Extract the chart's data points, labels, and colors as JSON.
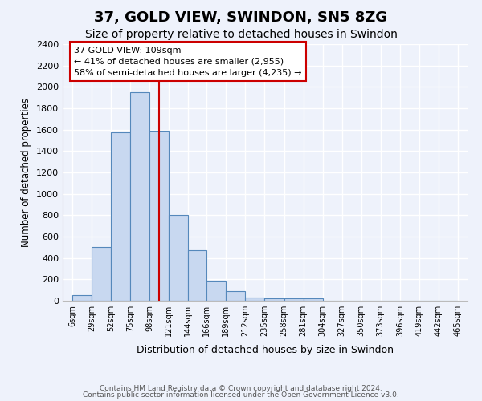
{
  "title": "37, GOLD VIEW, SWINDON, SN5 8ZG",
  "subtitle": "Size of property relative to detached houses in Swindon",
  "xlabel": "Distribution of detached houses by size in Swindon",
  "ylabel": "Number of detached properties",
  "bin_edges": [
    6,
    29,
    52,
    75,
    98,
    121,
    144,
    166,
    189,
    212,
    235,
    258,
    281,
    304,
    327,
    350,
    373,
    396,
    419,
    442,
    465
  ],
  "bin_edge_labels": [
    "6sqm",
    "29sqm",
    "52sqm",
    "75sqm",
    "98sqm",
    "121sqm",
    "144sqm",
    "166sqm",
    "189sqm",
    "212sqm",
    "235sqm",
    "258sqm",
    "281sqm",
    "304sqm",
    "327sqm",
    "350sqm",
    "373sqm",
    "396sqm",
    "419sqm",
    "442sqm",
    "465sqm"
  ],
  "bar_heights": [
    50,
    500,
    1575,
    1950,
    1590,
    800,
    475,
    185,
    90,
    30,
    25,
    25,
    25,
    0,
    0,
    0,
    0,
    0,
    0,
    0
  ],
  "bar_color": "#c8d8f0",
  "bar_edge_color": "#5588bb",
  "vline_color": "#cc0000",
  "annotation_line1": "37 GOLD VIEW: 109sqm",
  "annotation_line2": "← 41% of detached houses are smaller (2,955)",
  "annotation_line3": "58% of semi-detached houses are larger (4,235) →",
  "annotation_box_color": "#ffffff",
  "annotation_box_edge": "#cc0000",
  "ylim": [
    0,
    2400
  ],
  "yticks": [
    0,
    200,
    400,
    600,
    800,
    1000,
    1200,
    1400,
    1600,
    1800,
    2000,
    2200,
    2400
  ],
  "footer_line1": "Contains HM Land Registry data © Crown copyright and database right 2024.",
  "footer_line2": "Contains public sector information licensed under the Open Government Licence v3.0.",
  "background_color": "#eef2fb",
  "grid_color": "#ffffff"
}
